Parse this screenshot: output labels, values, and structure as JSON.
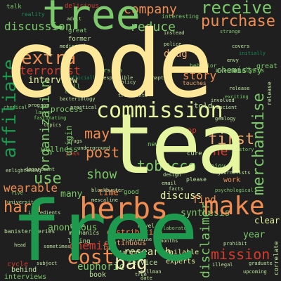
{
  "palette": {
    "background": "#1f1f1f",
    "cream": "#fde89a",
    "lime": "#e6f5a0",
    "green": "#7cc96b",
    "dark_green": "#1e9a4e",
    "teal": "#1b8a5a",
    "orange": "#f28d52",
    "red": "#d83a2e",
    "salmon": "#f4a86f",
    "pale": "#f7f2b8",
    "mint": "#bfe6a0"
  },
  "words": {
    "code": "code",
    "tea": "tea",
    "free": "free",
    "tree": "tree",
    "herbs": "herbs",
    "make": "make",
    "commission": "commission",
    "purchase": "purchase",
    "receive": "receive",
    "company": "company",
    "reduce": "reduce",
    "extra": "extra",
    "terrorist": "terrorist",
    "interview": "interview",
    "affiliate": "affiliate",
    "post": "post",
    "may": "may",
    "first": "first",
    "one": "one",
    "show": "show",
    "tobacco": "tobacco",
    "merchandise": "merchandise",
    "use": "use",
    "wearable": "wearable",
    "harm": "harm",
    "cost": "cost",
    "bag": "bag",
    "research": "research",
    "chemist": "chemist",
    "mission": "mission",
    "disclaimer": "disclaimer",
    "story": "story",
    "drug": "drug",
    "chemistry": "chemistry",
    "discussion": "discussion",
    "delicious": "delicious",
    "reality": "reality",
    "adult": "adult",
    "interesting": "interesting",
    "organization": "organization",
    "distribution": "distribution",
    "euphoric": "euphoric",
    "continuous": "continuous",
    "living": "living",
    "synthesis": "synthesis",
    "discuss": "discuss",
    "anonymous": "anonymous",
    "wellness": "wellness",
    "year": "year",
    "clear": "clear",
    "cycle": "cycle",
    "behind": "behind",
    "interviews": "interviews",
    "book": "book",
    "experts": "experts",
    "service": "service",
    "available": "available",
    "enjoy": "enjoy",
    "cure": "cure",
    "new": "new",
    "design": "design",
    "top": "top",
    "talk": "talk",
    "great": "great",
    "former": "former",
    "told": "told",
    "time": "time",
    "many": "many",
    "lab": "lab",
    "find": "find",
    "work": "work",
    "pass": "pass",
    "process": "process",
    "full": "full",
    "version": "version",
    "medicinal": "medicinal",
    "policy": "policy",
    "tells": "tells",
    "program": "program",
    "lawyer": "lawyer",
    "origin": "origin",
    "drugs": "drugs",
    "mechanics": "mechanics",
    "mescaline": "mescaline",
    "psychological": "psychological",
    "journalists": "journalists",
    "bacteriology": "bacteriology",
    "treatments": "treatments",
    "exciting": "exciting",
    "analysis": "analysis",
    "release": "release",
    "inventor": "inventor",
    "instead": "instead",
    "ingredients": "ingredients",
    "upcoming": "upcoming",
    "illegal": "illegal",
    "prohibit": "prohibit",
    "months": "months",
    "laboratory": "laboratory",
    "novel": "novel",
    "tartrate": "tartrate",
    "ergotamine": "ergotamine",
    "hillman": "hillman",
    "date": "date",
    "true": "true",
    "banister_series": "banister series",
    "head": "head",
    "topics": "topics",
    "fascinating": "fascinating",
    "chemical": "chemical",
    "blockbuster": "blockbuster",
    "enlightening": "enlightening",
    "behavior": "behavior",
    "facts": "facts",
    "please": "please",
    "email": "email",
    "five": "five",
    "university": "university",
    "sometimes": "sometimes",
    "penis": "penis",
    "good": "good",
    "involved": "involved",
    "ancient": "ancient",
    "strange": "strange",
    "covers": "covers",
    "initially": "initially",
    "envy": "envy",
    "police": "police",
    "responsible": "responsible",
    "officially": "officially",
    "underground": "underground",
    "touches": "touches",
    "practical": "practical",
    "department": "department",
    "subject": "subject",
    "chapter": "chapter",
    "gemlogy": "gemlogy",
    "graduate": "graduate",
    "correlate": "correlate",
    "history": "history"
  }
}
